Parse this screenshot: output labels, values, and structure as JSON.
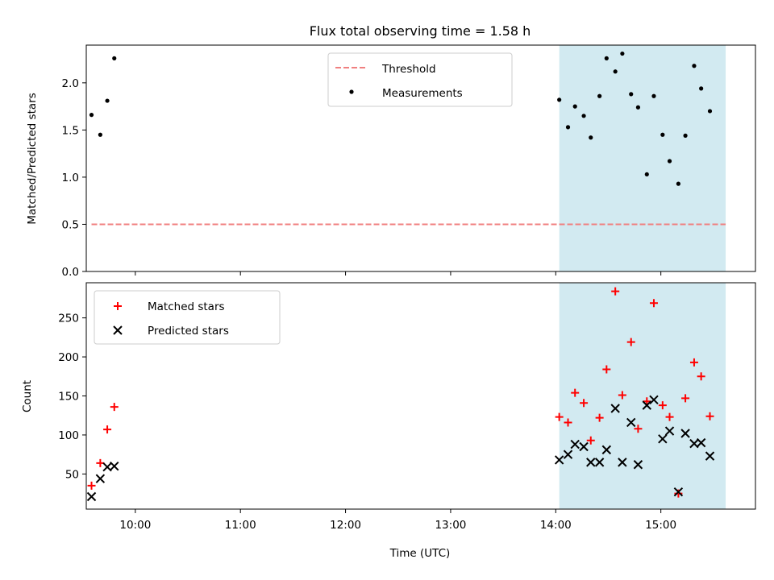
{
  "chart_data": [
    {
      "type": "scatter",
      "title": "Flux total observing time = 1.58 h",
      "xlabel": "",
      "ylabel": "Matched/Predicted stars",
      "xlim": [
        "09:32",
        "15:54"
      ],
      "ylim": [
        0,
        2.4
      ],
      "yticks": [
        "0.0",
        "0.5",
        "1.0",
        "1.5",
        "2.0"
      ],
      "shaded_region": {
        "from": "14:02",
        "to": "15:37",
        "color": "#add8e6"
      },
      "threshold": {
        "name": "Threshold",
        "value": 0.5,
        "from": "09:35",
        "to": "15:37",
        "color": "#f08080"
      },
      "legend": [
        "Threshold",
        "Measurements"
      ],
      "legend_position": "top-center",
      "series": [
        {
          "name": "Measurements",
          "color": "#000000",
          "points": [
            [
              "09:35",
              1.66
            ],
            [
              "09:40",
              1.45
            ],
            [
              "09:44",
              1.81
            ],
            [
              "09:48",
              2.26
            ],
            [
              "14:02",
              1.82
            ],
            [
              "14:07",
              1.53
            ],
            [
              "14:11",
              1.75
            ],
            [
              "14:16",
              1.65
            ],
            [
              "14:20",
              1.42
            ],
            [
              "14:25",
              1.86
            ],
            [
              "14:29",
              2.26
            ],
            [
              "14:34",
              2.12
            ],
            [
              "14:38",
              2.31
            ],
            [
              "14:43",
              1.88
            ],
            [
              "14:47",
              1.74
            ],
            [
              "14:52",
              1.03
            ],
            [
              "14:56",
              1.86
            ],
            [
              "15:01",
              1.45
            ],
            [
              "15:05",
              1.17
            ],
            [
              "15:10",
              0.93
            ],
            [
              "15:14",
              1.44
            ],
            [
              "15:19",
              2.18
            ],
            [
              "15:23",
              1.94
            ],
            [
              "15:28",
              1.7
            ]
          ]
        }
      ]
    },
    {
      "type": "scatter",
      "title": "",
      "xlabel": "Time (UTC)",
      "ylabel": "Count",
      "xlim": [
        "09:32",
        "15:54"
      ],
      "ylim": [
        5,
        295
      ],
      "yticks": [
        "50",
        "100",
        "150",
        "200",
        "250"
      ],
      "xticks": [
        "10:00",
        "11:00",
        "12:00",
        "13:00",
        "14:00",
        "15:00"
      ],
      "shaded_region": {
        "from": "14:02",
        "to": "15:37",
        "color": "#add8e6"
      },
      "legend": [
        "Matched stars",
        "Predicted stars"
      ],
      "legend_position": "top-left",
      "series": [
        {
          "name": "Matched stars",
          "marker": "plus",
          "color": "#ff0000",
          "points": [
            [
              "09:35",
              35
            ],
            [
              "09:40",
              64
            ],
            [
              "09:44",
              107
            ],
            [
              "09:48",
              136
            ],
            [
              "14:02",
              123
            ],
            [
              "14:07",
              116
            ],
            [
              "14:11",
              154
            ],
            [
              "14:16",
              141
            ],
            [
              "14:20",
              93
            ],
            [
              "14:25",
              122
            ],
            [
              "14:29",
              184
            ],
            [
              "14:34",
              284
            ],
            [
              "14:38",
              151
            ],
            [
              "14:43",
              219
            ],
            [
              "14:47",
              108
            ],
            [
              "14:52",
              143
            ],
            [
              "14:56",
              269
            ],
            [
              "15:01",
              138
            ],
            [
              "15:05",
              123
            ],
            [
              "15:10",
              25
            ],
            [
              "15:14",
              147
            ],
            [
              "15:19",
              193
            ],
            [
              "15:23",
              175
            ],
            [
              "15:28",
              124
            ]
          ]
        },
        {
          "name": "Predicted stars",
          "marker": "x",
          "color": "#000000",
          "points": [
            [
              "09:35",
              21
            ],
            [
              "09:40",
              44
            ],
            [
              "09:44",
              59
            ],
            [
              "09:48",
              60
            ],
            [
              "14:02",
              68
            ],
            [
              "14:07",
              75
            ],
            [
              "14:11",
              88
            ],
            [
              "14:16",
              85
            ],
            [
              "14:20",
              65
            ],
            [
              "14:25",
              65
            ],
            [
              "14:29",
              81
            ],
            [
              "14:34",
              134
            ],
            [
              "14:38",
              65
            ],
            [
              "14:43",
              116
            ],
            [
              "14:47",
              62
            ],
            [
              "14:52",
              138
            ],
            [
              "14:56",
              145
            ],
            [
              "15:01",
              95
            ],
            [
              "15:05",
              105
            ],
            [
              "15:10",
              27
            ],
            [
              "15:14",
              102
            ],
            [
              "15:19",
              89
            ],
            [
              "15:23",
              90
            ],
            [
              "15:28",
              73
            ]
          ]
        }
      ]
    }
  ]
}
